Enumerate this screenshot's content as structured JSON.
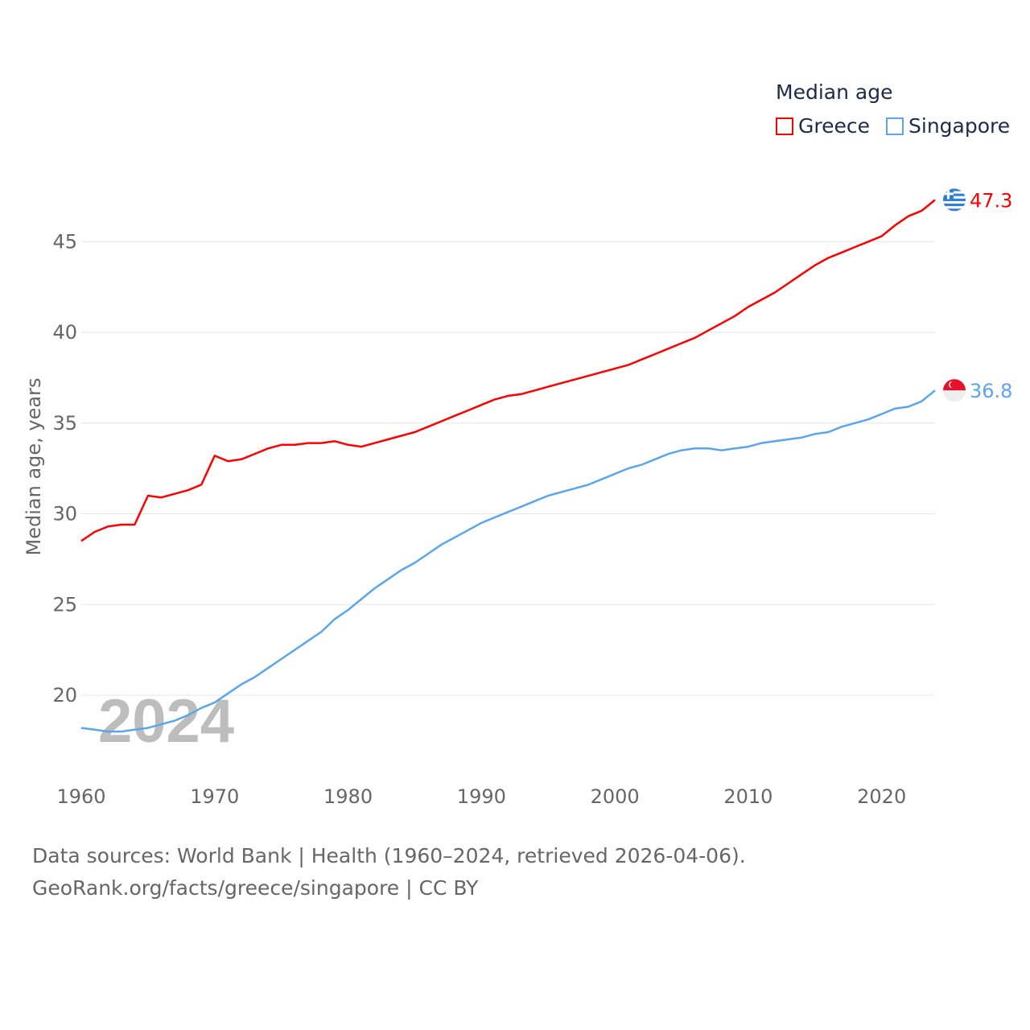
{
  "chart_data": {
    "type": "line",
    "title": "Median age",
    "ylabel": "Median age, years",
    "xlabel": "",
    "xlim": [
      1960,
      2024
    ],
    "ylim": [
      16,
      48
    ],
    "grid": true,
    "legend_placement": "top-right",
    "year_watermark": "2024",
    "x_ticks": [
      "1960",
      "1970",
      "1980",
      "1990",
      "2000",
      "2010",
      "2020"
    ],
    "y_ticks": [
      "20",
      "25",
      "30",
      "35",
      "40",
      "45"
    ],
    "x": [
      1960,
      1961,
      1962,
      1963,
      1964,
      1965,
      1966,
      1967,
      1968,
      1969,
      1970,
      1971,
      1972,
      1973,
      1974,
      1975,
      1976,
      1977,
      1978,
      1979,
      1980,
      1981,
      1982,
      1983,
      1984,
      1985,
      1986,
      1987,
      1988,
      1989,
      1990,
      1991,
      1992,
      1993,
      1994,
      1995,
      1996,
      1997,
      1998,
      1999,
      2000,
      2001,
      2002,
      2003,
      2004,
      2005,
      2006,
      2007,
      2008,
      2009,
      2010,
      2011,
      2012,
      2013,
      2014,
      2015,
      2016,
      2017,
      2018,
      2019,
      2020,
      2021,
      2022,
      2023,
      2024
    ],
    "series": [
      {
        "name": "Greece",
        "color": "#ff0000",
        "end_label": "47.3",
        "values": [
          28.5,
          29.0,
          29.3,
          29.4,
          29.4,
          31.0,
          30.9,
          31.1,
          31.3,
          31.6,
          33.2,
          32.9,
          33.0,
          33.3,
          33.6,
          33.8,
          33.8,
          33.9,
          33.9,
          34.0,
          33.8,
          33.7,
          33.9,
          34.1,
          34.3,
          34.5,
          34.8,
          35.1,
          35.4,
          35.7,
          36.0,
          36.3,
          36.5,
          36.6,
          36.8,
          37.0,
          37.2,
          37.4,
          37.6,
          37.8,
          38.0,
          38.2,
          38.5,
          38.8,
          39.1,
          39.4,
          39.7,
          40.1,
          40.5,
          40.9,
          41.4,
          41.8,
          42.2,
          42.7,
          43.2,
          43.7,
          44.1,
          44.4,
          44.7,
          45.0,
          45.3,
          45.9,
          46.4,
          46.7,
          47.3
        ]
      },
      {
        "name": "Singapore",
        "color": "#5aa6ec",
        "end_label": "36.8",
        "values": [
          18.2,
          18.1,
          18.0,
          18.0,
          18.1,
          18.2,
          18.4,
          18.6,
          18.9,
          19.3,
          19.6,
          20.1,
          20.6,
          21.0,
          21.5,
          22.0,
          22.5,
          23.0,
          23.5,
          24.2,
          24.7,
          25.3,
          25.9,
          26.4,
          26.9,
          27.3,
          27.8,
          28.3,
          28.7,
          29.1,
          29.5,
          29.8,
          30.1,
          30.4,
          30.7,
          31.0,
          31.2,
          31.4,
          31.6,
          31.9,
          32.2,
          32.5,
          32.7,
          33.0,
          33.3,
          33.5,
          33.6,
          33.6,
          33.5,
          33.6,
          33.7,
          33.9,
          34.0,
          34.1,
          34.2,
          34.4,
          34.5,
          34.8,
          35.0,
          35.2,
          35.5,
          35.8,
          35.9,
          36.2,
          36.8
        ]
      }
    ]
  },
  "footer": {
    "line1": "Data sources: World Bank | Health (1960–2024, retrieved 2026-04-06).",
    "line2": "GeoRank.org/facts/greece/singapore | CC BY"
  }
}
